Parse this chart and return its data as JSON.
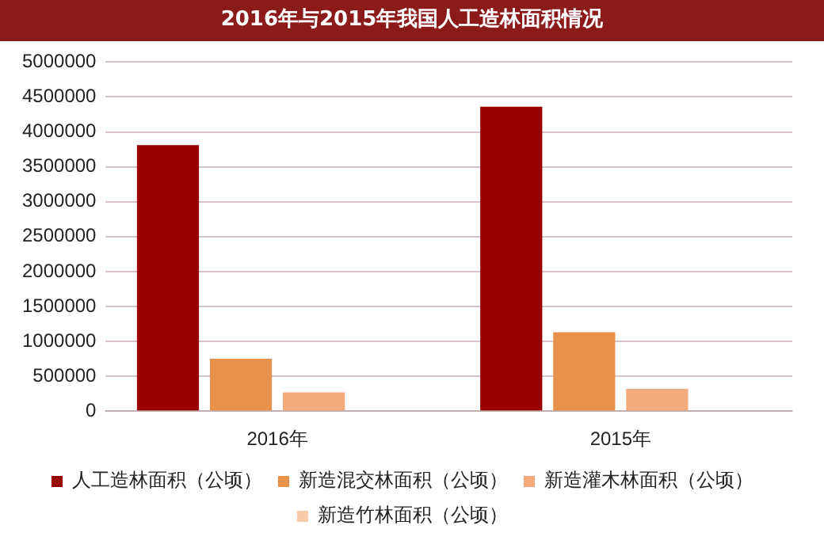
{
  "chart_data": {
    "type": "bar",
    "title": "2016年与2015年我国人工造林面积情况",
    "categories": [
      "2016年",
      "2015年"
    ],
    "series": [
      {
        "name": "人工造林面积（公顷）",
        "color": "#990000",
        "values": [
          3810000,
          4360000
        ]
      },
      {
        "name": "新造混交林面积（公顷）",
        "color": "#e8914a",
        "values": [
          750000,
          1130000
        ]
      },
      {
        "name": "新造灌木林面积（公顷）",
        "color": "#f4ab7c",
        "values": [
          270000,
          320000
        ]
      },
      {
        "name": "新造竹林面积（公顷）",
        "color": "#f8cbad",
        "values": [
          null,
          null
        ]
      }
    ],
    "ylim": [
      0,
      5000000
    ],
    "yticks": [
      0,
      500000,
      1000000,
      1500000,
      2000000,
      2500000,
      3000000,
      3500000,
      4000000,
      4500000,
      5000000
    ],
    "grid": "y",
    "legend": "bottom"
  }
}
